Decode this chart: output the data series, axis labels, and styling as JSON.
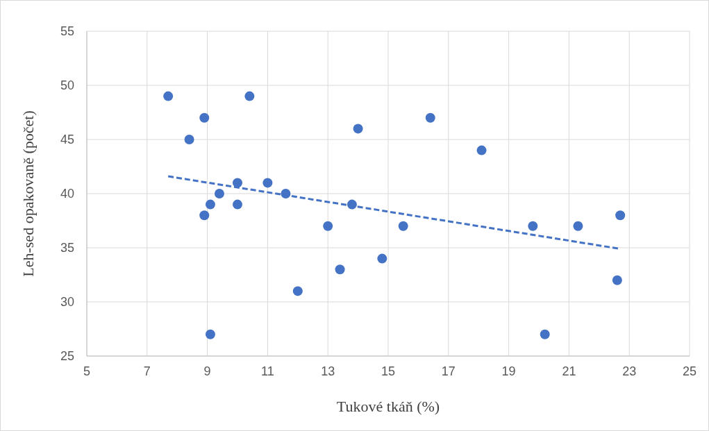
{
  "chart_data": {
    "type": "scatter",
    "xlabel": "Tukové tkáň (%)",
    "ylabel": "Leh-sed opakovaně (počet)",
    "xlim": [
      5,
      25
    ],
    "xticks": [
      5,
      7,
      9,
      11,
      13,
      15,
      17,
      19,
      21,
      23,
      25
    ],
    "ylim": [
      25,
      55
    ],
    "yticks": [
      25,
      30,
      35,
      40,
      45,
      50,
      55
    ],
    "grid": true,
    "marker": "circle",
    "series": [
      {
        "color": "#4472c4",
        "x": [
          7.7,
          8.4,
          8.9,
          8.9,
          9.1,
          9.1,
          9.4,
          10.0,
          10.0,
          10.4,
          11.0,
          11.6,
          12.0,
          13.0,
          13.4,
          13.8,
          14.0,
          14.8,
          15.5,
          16.4,
          18.1,
          19.8,
          20.2,
          21.3,
          22.6,
          22.7
        ],
        "values": [
          49,
          45,
          47,
          38,
          39,
          27,
          40,
          41,
          39,
          49,
          41,
          40,
          31,
          37,
          33,
          39,
          46,
          34,
          37,
          47,
          44,
          37,
          27,
          37,
          32,
          38
        ]
      },
      {
        "type": "line",
        "color": "#4472c4",
        "line_style": "dashed",
        "marker": "none",
        "x": [
          7.7,
          22.7
        ],
        "values": [
          41.6,
          34.9
        ]
      }
    ]
  }
}
